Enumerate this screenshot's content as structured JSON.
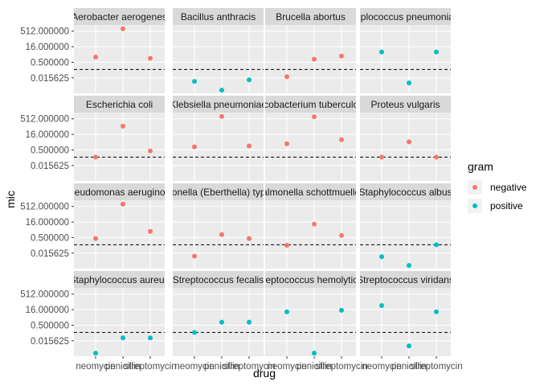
{
  "chart_data": {
    "type": "scatter",
    "facet_by": "bacteria",
    "xlabel": "drug",
    "ylabel": "mic",
    "y_scale": "log2",
    "y_ticks": [
      "512.000000",
      "16.000000",
      "0.500000",
      "0.015625"
    ],
    "y_tick_values": [
      512,
      16,
      0.5,
      0.015625
    ],
    "y_range": [
      0.0005,
      2048
    ],
    "reference_line": 0.1,
    "x_categories": [
      "neomycin",
      "penicillin",
      "streptomycin"
    ],
    "x_tick_labels": [
      "neomycin",
      "penicillin",
      "streptomycin"
    ],
    "legend": {
      "title": "gram",
      "entries": [
        {
          "label": "negative",
          "color": "#F8766D"
        },
        {
          "label": "positive",
          "color": "#00BFC4"
        }
      ],
      "position": "right"
    },
    "panels": [
      {
        "label": "Aerobacter aerogenes",
        "gram": "negative",
        "values": [
          1.6,
          870,
          1.2
        ]
      },
      {
        "label": "Bacillus anthracis",
        "gram": "positive",
        "values": [
          0.007,
          0.001,
          0.01
        ]
      },
      {
        "label": "Brucella abortus",
        "gram": "negative",
        "values": [
          0.02,
          1,
          2
        ]
      },
      {
        "label": "Diplococcus pneumoniae",
        "gram": "positive",
        "values": [
          5,
          0.005,
          5
        ]
      },
      {
        "label": "Escherichia coli",
        "gram": "negative",
        "values": [
          0.1,
          100,
          0.4
        ]
      },
      {
        "label": "Klebsiella pneumoniae",
        "gram": "negative",
        "values": [
          1,
          850,
          1.2
        ]
      },
      {
        "label": "Mycobacterium tuberculosis",
        "gram": "negative",
        "values": [
          2,
          800,
          5
        ]
      },
      {
        "label": "Proteus vulgaris",
        "gram": "negative",
        "values": [
          0.1,
          3,
          0.1
        ]
      },
      {
        "label": "Pseudomonas aeruginosa",
        "gram": "negative",
        "values": [
          0.4,
          850,
          2
        ]
      },
      {
        "label": "Salmonella (Eberthella) typhosa",
        "gram": "negative",
        "values": [
          0.008,
          1,
          0.4
        ]
      },
      {
        "label": "Salmonella schottmuelleri",
        "gram": "negative",
        "values": [
          0.09,
          10,
          0.8
        ]
      },
      {
        "label": "Staphylococcus albus",
        "gram": "positive",
        "values": [
          0.007,
          0.001,
          0.1
        ]
      },
      {
        "label": "Staphylococcus aureus",
        "gram": "positive",
        "values": [
          0.001,
          0.03,
          0.03
        ]
      },
      {
        "label": "Streptococcus fecalis",
        "gram": "positive",
        "values": [
          0.1,
          1,
          1
        ]
      },
      {
        "label": "Streptococcus hemolyticus",
        "gram": "positive",
        "values": [
          10,
          0.001,
          14
        ]
      },
      {
        "label": "Streptococcus viridans",
        "gram": "positive",
        "values": [
          40,
          0.005,
          10
        ]
      }
    ]
  }
}
